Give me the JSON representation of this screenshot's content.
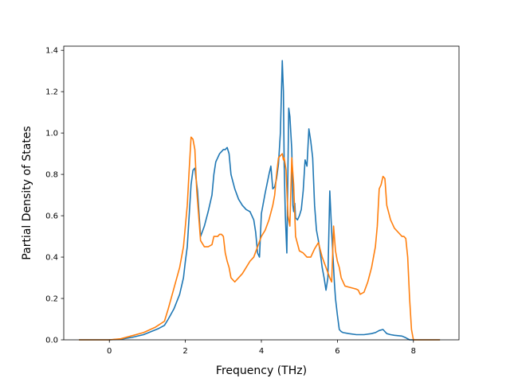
{
  "chart_data": {
    "type": "line",
    "title": "",
    "xlabel": "Frequency (THz)",
    "ylabel": "Partial Density of States",
    "xlim": [
      -1.2,
      9.2
    ],
    "ylim": [
      0.0,
      1.42
    ],
    "xticks": [
      0,
      2,
      4,
      6,
      8
    ],
    "yticks": [
      0.0,
      0.2,
      0.4,
      0.6,
      0.8,
      1.0,
      1.2,
      1.4
    ],
    "xtick_labels": [
      "0",
      "2",
      "4",
      "6",
      "8"
    ],
    "ytick_labels": [
      "0.0",
      "0.2",
      "0.4",
      "0.6",
      "0.8",
      "1.0",
      "1.2",
      "1.4"
    ],
    "grid": false,
    "legend": "none",
    "series": [
      {
        "color": "#1f77b4",
        "x": [
          -0.8,
          0.0,
          0.3,
          0.6,
          0.9,
          1.1,
          1.3,
          1.45,
          1.55,
          1.7,
          1.85,
          1.95,
          2.0,
          2.05,
          2.1,
          2.15,
          2.2,
          2.25,
          2.28,
          2.32,
          2.4,
          2.5,
          2.6,
          2.7,
          2.75,
          2.8,
          2.85,
          2.9,
          2.95,
          3.0,
          3.05,
          3.1,
          3.15,
          3.2,
          3.3,
          3.4,
          3.5,
          3.6,
          3.7,
          3.8,
          3.85,
          3.9,
          3.95,
          4.0,
          4.1,
          4.2,
          4.25,
          4.3,
          4.35,
          4.4,
          4.45,
          4.5,
          4.55,
          4.58,
          4.6,
          4.63,
          4.67,
          4.72,
          4.75,
          4.8,
          4.83,
          4.85,
          4.88,
          4.9,
          4.95,
          5.0,
          5.05,
          5.1,
          5.15,
          5.2,
          5.25,
          5.3,
          5.35,
          5.4,
          5.45,
          5.5,
          5.55,
          5.6,
          5.65,
          5.7,
          5.75,
          5.8,
          5.85,
          5.9,
          5.92,
          5.95,
          6.0,
          6.05,
          6.1,
          6.15,
          6.3,
          6.5,
          6.7,
          6.9,
          7.0,
          7.1,
          7.2,
          7.25,
          7.3,
          7.4,
          7.5,
          7.6,
          7.7,
          7.8,
          7.9,
          8.0,
          8.5,
          8.7
        ],
        "y": [
          0.0,
          0.0,
          0.003,
          0.012,
          0.025,
          0.04,
          0.055,
          0.07,
          0.1,
          0.15,
          0.22,
          0.3,
          0.38,
          0.45,
          0.6,
          0.75,
          0.82,
          0.83,
          0.78,
          0.72,
          0.5,
          0.55,
          0.62,
          0.7,
          0.8,
          0.86,
          0.88,
          0.9,
          0.91,
          0.92,
          0.92,
          0.93,
          0.9,
          0.8,
          0.73,
          0.68,
          0.65,
          0.63,
          0.62,
          0.58,
          0.52,
          0.42,
          0.4,
          0.61,
          0.71,
          0.8,
          0.84,
          0.73,
          0.74,
          0.78,
          0.85,
          1.0,
          1.35,
          1.2,
          0.85,
          0.6,
          0.42,
          1.12,
          1.08,
          0.92,
          0.65,
          0.62,
          0.66,
          0.59,
          0.58,
          0.6,
          0.63,
          0.72,
          0.87,
          0.84,
          1.02,
          0.96,
          0.88,
          0.65,
          0.53,
          0.48,
          0.42,
          0.35,
          0.3,
          0.24,
          0.3,
          0.72,
          0.52,
          0.35,
          0.28,
          0.2,
          0.12,
          0.05,
          0.04,
          0.035,
          0.03,
          0.025,
          0.025,
          0.03,
          0.035,
          0.045,
          0.05,
          0.04,
          0.03,
          0.025,
          0.022,
          0.02,
          0.018,
          0.01,
          0.0,
          0.0,
          0.0,
          0.0
        ]
      },
      {
        "color": "#ff7f0e",
        "x": [
          -0.8,
          0.0,
          0.3,
          0.6,
          0.9,
          1.2,
          1.45,
          1.55,
          1.7,
          1.85,
          1.95,
          2.0,
          2.05,
          2.1,
          2.15,
          2.2,
          2.25,
          2.3,
          2.4,
          2.5,
          2.6,
          2.7,
          2.75,
          2.8,
          2.85,
          2.9,
          2.95,
          3.0,
          3.05,
          3.1,
          3.15,
          3.2,
          3.3,
          3.4,
          3.5,
          3.6,
          3.7,
          3.8,
          3.9,
          4.0,
          4.1,
          4.2,
          4.3,
          4.35,
          4.4,
          4.45,
          4.5,
          4.55,
          4.58,
          4.6,
          4.65,
          4.7,
          4.75,
          4.8,
          4.85,
          4.9,
          5.0,
          5.1,
          5.2,
          5.3,
          5.35,
          5.4,
          5.5,
          5.6,
          5.7,
          5.8,
          5.85,
          5.9,
          5.95,
          6.0,
          6.05,
          6.1,
          6.2,
          6.3,
          6.4,
          6.5,
          6.55,
          6.6,
          6.7,
          6.8,
          6.9,
          7.0,
          7.05,
          7.1,
          7.15,
          7.2,
          7.25,
          7.3,
          7.4,
          7.5,
          7.6,
          7.7,
          7.75,
          7.8,
          7.85,
          7.9,
          7.95,
          8.0,
          8.2,
          8.5,
          8.7
        ],
        "y": [
          0.0,
          0.0,
          0.005,
          0.02,
          0.035,
          0.06,
          0.09,
          0.15,
          0.25,
          0.35,
          0.45,
          0.55,
          0.65,
          0.82,
          0.98,
          0.97,
          0.92,
          0.72,
          0.48,
          0.45,
          0.45,
          0.46,
          0.5,
          0.5,
          0.5,
          0.51,
          0.51,
          0.5,
          0.42,
          0.38,
          0.35,
          0.3,
          0.28,
          0.3,
          0.32,
          0.35,
          0.38,
          0.4,
          0.45,
          0.5,
          0.53,
          0.58,
          0.65,
          0.7,
          0.8,
          0.88,
          0.89,
          0.9,
          0.87,
          0.88,
          0.82,
          0.6,
          0.55,
          0.88,
          0.75,
          0.5,
          0.43,
          0.42,
          0.4,
          0.4,
          0.42,
          0.44,
          0.47,
          0.4,
          0.35,
          0.3,
          0.28,
          0.55,
          0.43,
          0.38,
          0.35,
          0.3,
          0.26,
          0.255,
          0.25,
          0.245,
          0.24,
          0.22,
          0.23,
          0.28,
          0.35,
          0.45,
          0.55,
          0.73,
          0.75,
          0.79,
          0.78,
          0.65,
          0.58,
          0.54,
          0.52,
          0.5,
          0.5,
          0.49,
          0.4,
          0.2,
          0.05,
          0.0,
          0.0,
          0.0,
          0.0
        ]
      }
    ]
  }
}
